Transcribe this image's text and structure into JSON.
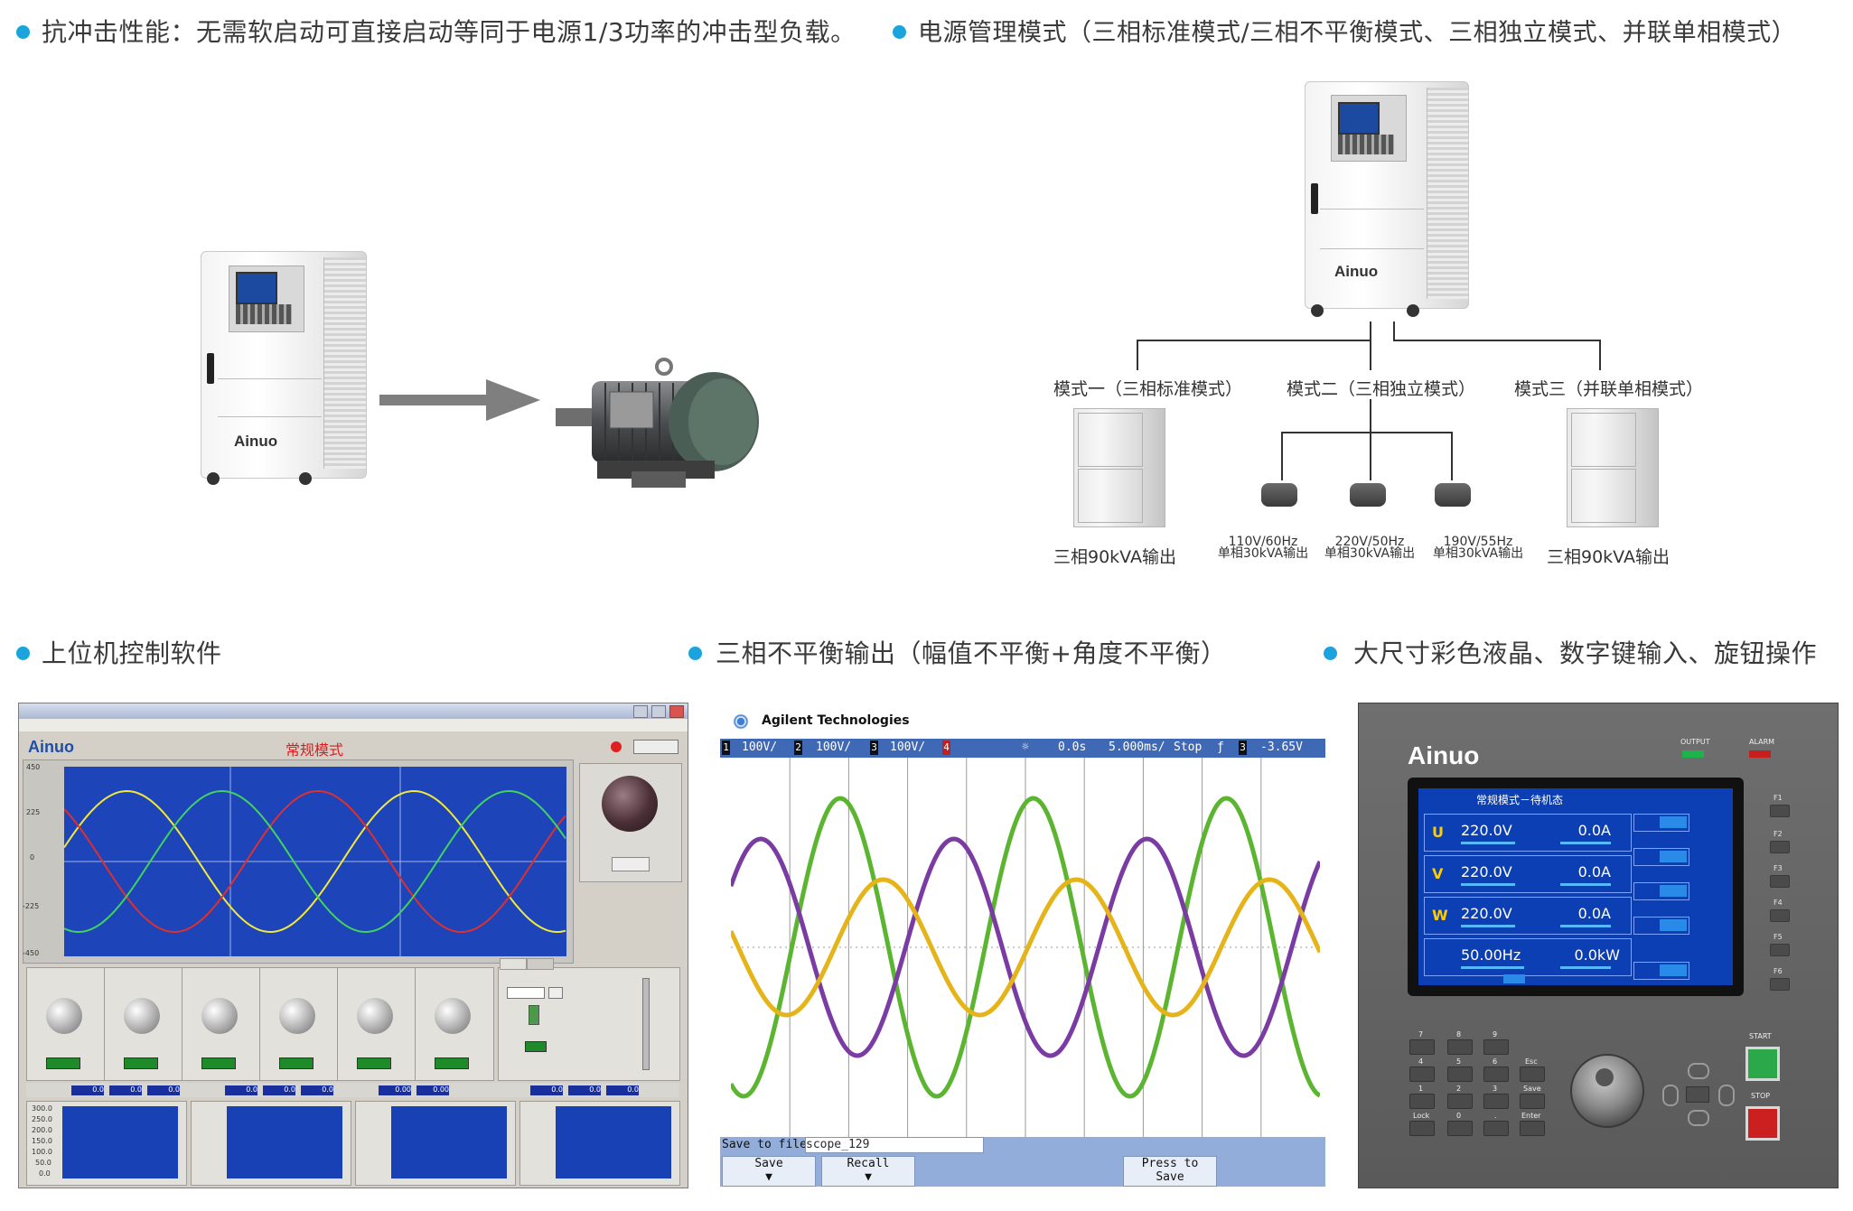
{
  "headings": {
    "impact": "抗冲击性能：无需软启动可直接启动等同于电源1/3功率的冲击型负载。",
    "modes": "电源管理模式（三相标准模式/三相不平衡模式、三相独立模式、并联单相模式）",
    "software": "上位机控制软件",
    "unbalanced": "三相不平衡输出（幅值不平衡+角度不平衡）",
    "lcd": "大尺寸彩色液晶、数字键输入、旋钮操作"
  },
  "brand": "Ainuo",
  "mode_tree": {
    "mode1": "模式一（三相标准模式）",
    "mode2": "模式二（三相独立模式）",
    "mode3": "模式三（并联单相模式）",
    "out1": "三相90kVA输出",
    "out3": "三相90kVA输出",
    "motors": [
      {
        "freq": "110V/60Hz",
        "out": "单相30kVA输出"
      },
      {
        "freq": "220V/50Hz",
        "out": "单相30kVA输出"
      },
      {
        "freq": "190V/55Hz",
        "out": "单相30kVA输出"
      }
    ]
  },
  "software": {
    "mode_title": "常规模式",
    "y_ticks": [
      "450",
      "225",
      "0",
      "-225",
      "-450"
    ],
    "colors": {
      "red": "#e0302d",
      "yellow": "#f2e93a",
      "green": "#41d45c",
      "plot_bg": "#1d44b8"
    },
    "readouts": [
      "0.0",
      "0.0",
      "0.0",
      "0.0",
      "0.0",
      "0.0",
      "0.00",
      "0.00",
      "0.0",
      "0.0",
      "0.0"
    ],
    "mini_y_ticks": [
      "300.0",
      "250.0",
      "200.0",
      "150.0",
      "100.0",
      "50.0",
      "0.0"
    ]
  },
  "scope": {
    "brand": "Agilent Technologies",
    "ch1": "100V/",
    "ch2": "100V/",
    "ch3": "100V/",
    "time": "0.0s",
    "timebase": "5.000ms/",
    "state": "Stop",
    "trig": "-3.65V",
    "save_label": "Save to file =",
    "file_name": "scope_129",
    "btn_save": "Save",
    "btn_recall": "Recall",
    "btn_press": "Press to",
    "btn_press2": "Save",
    "colors": {
      "green": "#5bb531",
      "purple": "#7a3ca3",
      "yellow": "#e5b41a",
      "grid": "#9a9a9a"
    }
  },
  "panel": {
    "brand": "Ainuo",
    "lcd_title": "常规模式－待机态",
    "rows": [
      {
        "ph": "U",
        "v": "220.0V",
        "a": "0.0A"
      },
      {
        "ph": "V",
        "v": "220.0V",
        "a": "0.0A"
      },
      {
        "ph": "W",
        "v": "220.0V",
        "a": "0.0A"
      }
    ],
    "freq": "50.00Hz",
    "power": "0.0kW",
    "output_lbl": "OUTPUT",
    "alarm_lbl": "ALARM",
    "start_lbl": "START",
    "stop_lbl": "STOP",
    "fkeys": [
      "F1",
      "F2",
      "F3",
      "F4",
      "F5",
      "F6"
    ],
    "keys_row1": [
      "7",
      "8",
      "9"
    ],
    "keys_row2": [
      "4",
      "5",
      "6",
      "Esc"
    ],
    "keys_row3": [
      "1",
      "2",
      "3",
      "Save"
    ],
    "keys_row4": [
      "Lock",
      "0",
      ".",
      "Enter"
    ]
  }
}
